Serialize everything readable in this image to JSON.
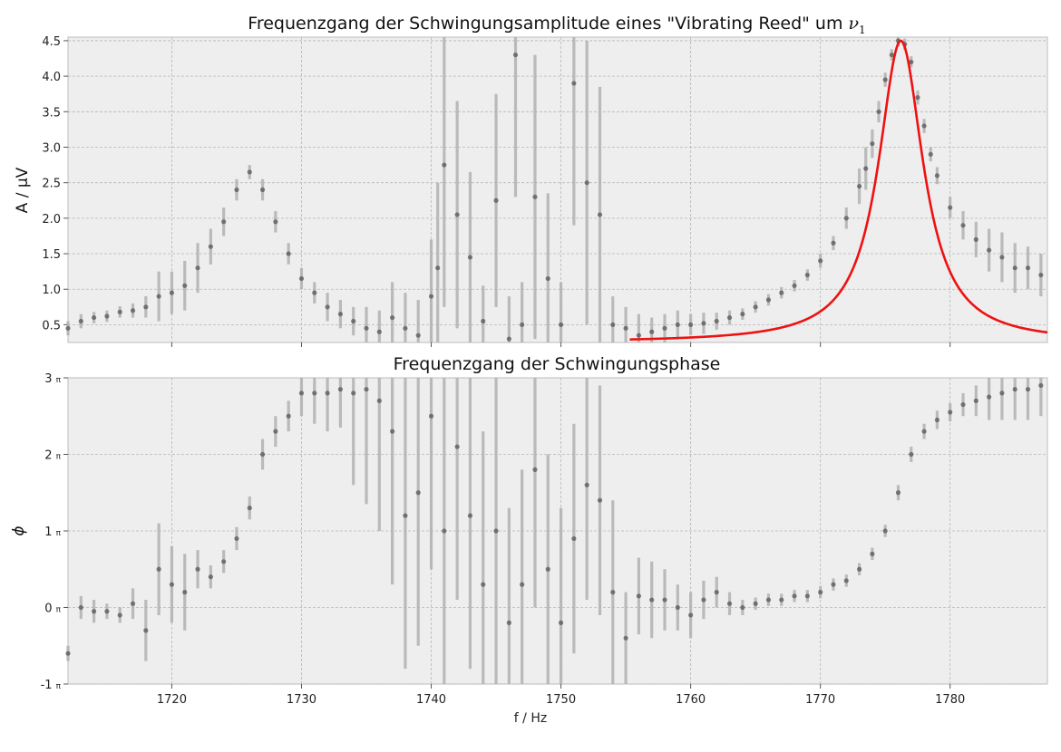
{
  "chart_data": [
    {
      "type": "scatter",
      "title": "Frequenzgang der Schwingungsamplitude eines \"Vibrating Reed\" um",
      "title_math": "ν",
      "title_math_sub": "1",
      "xlabel": "",
      "ylabel": "A / μV",
      "xlim": [
        1712,
        1787.5
      ],
      "ylim": [
        0.25,
        4.55
      ],
      "xticks": [
        1720,
        1730,
        1740,
        1750,
        1760,
        1770,
        1780
      ],
      "xticklabels_shown": false,
      "yticks": [
        0.5,
        1.0,
        1.5,
        2.0,
        2.5,
        3.0,
        3.5,
        4.0,
        4.5
      ],
      "ytick_labels": [
        "0.5",
        "1.0",
        "1.5",
        "2.0",
        "2.5",
        "3.0",
        "3.5",
        "4.0",
        "4.5"
      ],
      "grid": true,
      "background": "#eeeeee",
      "marker_color": "#555555",
      "errorbar_color": "#b0b0b0",
      "fit_color": "#ee1111",
      "series": [
        {
          "kind": "measurement",
          "x": [
            1712.0,
            1713.0,
            1714.0,
            1715.0,
            1716.0,
            1717.0,
            1718.0,
            1719.0,
            1720.0,
            1721.0,
            1722.0,
            1723.0,
            1724.0,
            1725.0,
            1726.0,
            1727.0,
            1728.0,
            1729.0,
            1730.0,
            1731.0,
            1732.0,
            1733.0,
            1734.0,
            1735.0,
            1736.0,
            1737.0,
            1738.0,
            1739.0,
            1740.0,
            1740.5,
            1741.0,
            1742.0,
            1743.0,
            1744.0,
            1745.0,
            1746.0,
            1746.5,
            1747.0,
            1748.0,
            1749.0,
            1750.0,
            1751.0,
            1752.0,
            1753.0,
            1754.0,
            1755.0,
            1756.0,
            1757.0,
            1758.0,
            1759.0,
            1760.0,
            1761.0,
            1762.0,
            1763.0,
            1764.0,
            1765.0,
            1766.0,
            1767.0,
            1768.0,
            1769.0,
            1770.0,
            1771.0,
            1772.0,
            1773.0,
            1773.5,
            1774.0,
            1774.5,
            1775.0,
            1775.5,
            1776.0,
            1776.5,
            1777.0,
            1777.5,
            1778.0,
            1778.5,
            1779.0,
            1780.0,
            1781.0,
            1782.0,
            1783.0,
            1784.0,
            1785.0,
            1786.0,
            1787.0
          ],
          "y": [
            0.45,
            0.55,
            0.6,
            0.62,
            0.68,
            0.7,
            0.75,
            0.9,
            0.95,
            1.05,
            1.3,
            1.6,
            1.95,
            2.4,
            2.65,
            2.4,
            1.95,
            1.5,
            1.15,
            0.95,
            0.75,
            0.65,
            0.55,
            0.45,
            0.4,
            0.6,
            0.45,
            0.35,
            0.9,
            1.3,
            2.75,
            2.05,
            1.45,
            0.55,
            2.25,
            0.3,
            4.3,
            0.5,
            2.3,
            1.15,
            0.5,
            3.9,
            2.5,
            2.05,
            0.5,
            0.45,
            0.35,
            0.4,
            0.45,
            0.5,
            0.5,
            0.52,
            0.55,
            0.6,
            0.65,
            0.75,
            0.85,
            0.95,
            1.05,
            1.2,
            1.4,
            1.65,
            2.0,
            2.45,
            2.7,
            3.05,
            3.5,
            3.95,
            4.3,
            4.5,
            4.45,
            4.2,
            3.7,
            3.3,
            2.9,
            2.6,
            2.15,
            1.9,
            1.7,
            1.55,
            1.45,
            1.3,
            1.3,
            1.2
          ],
          "yerr": [
            0.1,
            0.1,
            0.08,
            0.08,
            0.08,
            0.1,
            0.15,
            0.35,
            0.3,
            0.35,
            0.35,
            0.25,
            0.2,
            0.15,
            0.1,
            0.15,
            0.15,
            0.15,
            0.15,
            0.15,
            0.2,
            0.2,
            0.2,
            0.3,
            0.3,
            0.5,
            0.5,
            0.5,
            0.8,
            1.2,
            2.0,
            1.6,
            1.2,
            0.5,
            1.5,
            0.6,
            2.0,
            0.6,
            2.0,
            1.2,
            0.6,
            2.0,
            2.0,
            1.8,
            0.4,
            0.3,
            0.3,
            0.2,
            0.2,
            0.2,
            0.15,
            0.15,
            0.12,
            0.1,
            0.08,
            0.08,
            0.08,
            0.08,
            0.08,
            0.08,
            0.1,
            0.1,
            0.15,
            0.25,
            0.3,
            0.2,
            0.15,
            0.1,
            0.08,
            0.08,
            0.08,
            0.08,
            0.1,
            0.1,
            0.1,
            0.12,
            0.15,
            0.2,
            0.25,
            0.3,
            0.35,
            0.35,
            0.3,
            0.3
          ]
        },
        {
          "kind": "fit",
          "model": "lorentzian",
          "x_start": 1755.3,
          "x_end": 1787.5,
          "x0": 1776.2,
          "gamma": 2.1,
          "amplitude": 4.25,
          "offset": 0.25
        }
      ]
    },
    {
      "type": "scatter",
      "title": "Frequenzgang der Schwingungsphase",
      "xlabel": "f / Hz",
      "ylabel": "ϕ",
      "xlim": [
        1712,
        1787.5
      ],
      "ylim": [
        -1,
        3
      ],
      "xticks": [
        1720,
        1730,
        1740,
        1750,
        1760,
        1770,
        1780
      ],
      "xtick_labels": [
        "1720",
        "1730",
        "1740",
        "1750",
        "1760",
        "1770",
        "1780"
      ],
      "yticks": [
        -1,
        0,
        1,
        2,
        3
      ],
      "ytick_labels": [
        "-1",
        "0",
        "1",
        "2",
        "3"
      ],
      "ytick_suffix": "π",
      "grid": true,
      "background": "#eeeeee",
      "marker_color": "#555555",
      "errorbar_color": "#b0b0b0",
      "series": [
        {
          "kind": "measurement",
          "x": [
            1712.0,
            1713.0,
            1714.0,
            1715.0,
            1716.0,
            1717.0,
            1718.0,
            1719.0,
            1720.0,
            1721.0,
            1722.0,
            1723.0,
            1724.0,
            1725.0,
            1726.0,
            1727.0,
            1728.0,
            1729.0,
            1730.0,
            1731.0,
            1732.0,
            1733.0,
            1734.0,
            1735.0,
            1736.0,
            1737.0,
            1738.0,
            1739.0,
            1740.0,
            1741.0,
            1742.0,
            1743.0,
            1744.0,
            1745.0,
            1746.0,
            1747.0,
            1748.0,
            1749.0,
            1750.0,
            1751.0,
            1752.0,
            1753.0,
            1754.0,
            1755.0,
            1756.0,
            1757.0,
            1758.0,
            1759.0,
            1760.0,
            1761.0,
            1762.0,
            1763.0,
            1764.0,
            1765.0,
            1766.0,
            1767.0,
            1768.0,
            1769.0,
            1770.0,
            1771.0,
            1772.0,
            1773.0,
            1774.0,
            1775.0,
            1776.0,
            1777.0,
            1778.0,
            1779.0,
            1780.0,
            1781.0,
            1782.0,
            1783.0,
            1784.0,
            1785.0,
            1786.0,
            1787.0
          ],
          "y": [
            -0.6,
            0.0,
            -0.05,
            -0.05,
            -0.1,
            0.05,
            -0.3,
            0.5,
            0.3,
            0.2,
            0.5,
            0.4,
            0.6,
            0.9,
            1.3,
            2.0,
            2.3,
            2.5,
            2.8,
            2.8,
            2.8,
            2.85,
            2.8,
            2.85,
            2.7,
            2.3,
            1.2,
            1.5,
            2.5,
            1.0,
            2.1,
            1.2,
            0.3,
            1.0,
            -0.2,
            0.3,
            1.8,
            0.5,
            -0.2,
            0.9,
            1.6,
            1.4,
            0.2,
            -0.4,
            0.15,
            0.1,
            0.1,
            0.0,
            -0.1,
            0.1,
            0.2,
            0.05,
            0.0,
            0.05,
            0.1,
            0.1,
            0.15,
            0.15,
            0.2,
            0.3,
            0.35,
            0.5,
            0.7,
            1.0,
            1.5,
            2.0,
            2.3,
            2.45,
            2.55,
            2.65,
            2.7,
            2.75,
            2.8,
            2.85,
            2.85,
            2.9
          ],
          "yerr": [
            0.1,
            0.15,
            0.15,
            0.1,
            0.1,
            0.2,
            0.4,
            0.6,
            0.5,
            0.5,
            0.25,
            0.15,
            0.15,
            0.15,
            0.15,
            0.2,
            0.2,
            0.2,
            0.3,
            0.4,
            0.5,
            0.5,
            1.2,
            1.5,
            1.7,
            2.0,
            2.0,
            2.0,
            2.0,
            2.0,
            2.0,
            2.0,
            2.0,
            2.0,
            1.5,
            1.5,
            1.8,
            1.5,
            1.5,
            1.5,
            1.5,
            1.5,
            1.2,
            0.6,
            0.5,
            0.5,
            0.4,
            0.3,
            0.3,
            0.25,
            0.2,
            0.15,
            0.1,
            0.08,
            0.08,
            0.08,
            0.08,
            0.08,
            0.08,
            0.08,
            0.08,
            0.08,
            0.08,
            0.08,
            0.1,
            0.1,
            0.1,
            0.12,
            0.12,
            0.15,
            0.2,
            0.3,
            0.35,
            0.4,
            0.4,
            0.4
          ]
        }
      ]
    }
  ]
}
